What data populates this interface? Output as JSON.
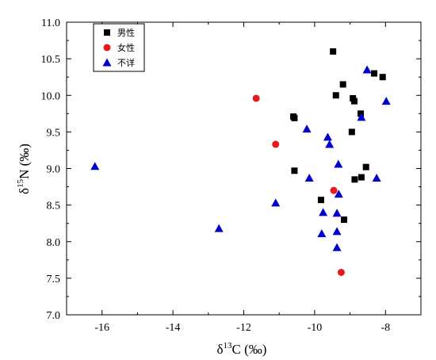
{
  "chart_data": {
    "type": "scatter",
    "xlabel": "δ13C (‰)",
    "xlabel_parts": {
      "delta": "δ",
      "sup": "13",
      "rest": "C (‰)"
    },
    "ylabel": "δ15N (‰)",
    "ylabel_parts": {
      "delta": "δ",
      "sup": "15",
      "rest": "N (‰)"
    },
    "xlim": [
      -17,
      -7
    ],
    "ylim": [
      7.0,
      11.0
    ],
    "xticks": [
      -16,
      -14,
      -12,
      -10,
      -8
    ],
    "xtick_labels": [
      "-16",
      "-14",
      "-12",
      "-10",
      "-8"
    ],
    "yticks": [
      7.0,
      7.5,
      8.0,
      8.5,
      9.0,
      9.5,
      10.0,
      10.5,
      11.0
    ],
    "ytick_labels": [
      "7.0",
      "7.5",
      "8.0",
      "8.5",
      "9.0",
      "9.5",
      "10.0",
      "10.5",
      "11.0"
    ],
    "grid": false,
    "legend_position": "top-left",
    "series": [
      {
        "name": "男性",
        "marker": "square",
        "color": "#000000",
        "points": [
          [
            -9.48,
            10.6
          ],
          [
            -8.32,
            10.3
          ],
          [
            -8.08,
            10.25
          ],
          [
            -9.2,
            10.15
          ],
          [
            -9.4,
            10.0
          ],
          [
            -8.92,
            9.96
          ],
          [
            -8.88,
            9.92
          ],
          [
            -8.7,
            9.75
          ],
          [
            -10.6,
            9.71
          ],
          [
            -10.57,
            9.69
          ],
          [
            -8.95,
            9.5
          ],
          [
            -10.57,
            8.97
          ],
          [
            -8.55,
            9.02
          ],
          [
            -8.68,
            8.88
          ],
          [
            -8.87,
            8.85
          ],
          [
            -9.82,
            8.57
          ],
          [
            -9.17,
            8.3
          ]
        ]
      },
      {
        "name": "女性",
        "marker": "circle",
        "color": "#e41a1c",
        "points": [
          [
            -11.65,
            9.96
          ],
          [
            -11.1,
            9.33
          ],
          [
            -9.46,
            8.7
          ],
          [
            -9.25,
            7.58
          ]
        ]
      },
      {
        "name": "不详",
        "marker": "triangle",
        "color": "#0000cc",
        "points": [
          [
            -16.2,
            9.03
          ],
          [
            -12.7,
            8.18
          ],
          [
            -11.1,
            8.53
          ],
          [
            -10.22,
            9.54
          ],
          [
            -10.15,
            8.87
          ],
          [
            -9.63,
            9.43
          ],
          [
            -9.58,
            9.33
          ],
          [
            -9.33,
            9.06
          ],
          [
            -9.32,
            8.65
          ],
          [
            -9.76,
            8.4
          ],
          [
            -9.37,
            8.39
          ],
          [
            -9.8,
            8.11
          ],
          [
            -9.37,
            8.14
          ],
          [
            -9.37,
            7.92
          ],
          [
            -8.52,
            10.35
          ],
          [
            -8.68,
            9.7
          ],
          [
            -7.98,
            9.92
          ],
          [
            -8.25,
            8.87
          ]
        ]
      }
    ]
  }
}
